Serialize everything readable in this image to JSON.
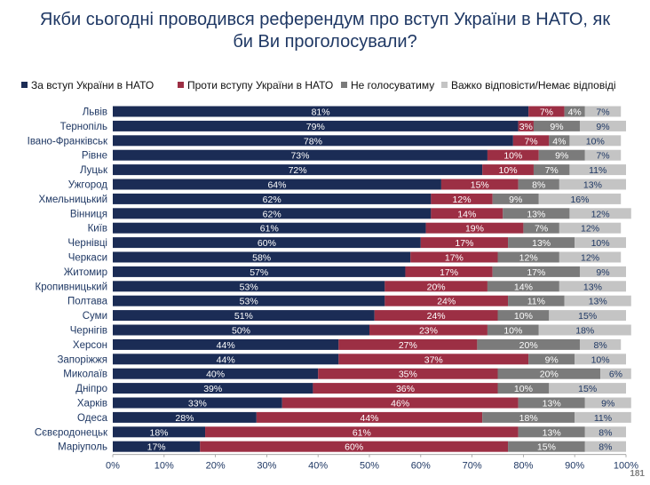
{
  "chart_data": {
    "type": "bar",
    "orientation": "horizontal",
    "stacked": true,
    "title": "Якби сьогодні проводився референдум про вступ України в НАТО, як би Ви проголосували?",
    "title_lines": [
      "Якби сьогодні проводився референдум про вступ України в НАТО, як",
      "би Ви проголосували?"
    ],
    "categories": [
      "Львів",
      "Тернопіль",
      "Івано-Франківськ",
      "Рівне",
      "Луцьк",
      "Ужгород",
      "Хмельницький",
      "Вінниця",
      "Київ",
      "Чернівці",
      "Черкаси",
      "Житомир",
      "Кропивницький",
      "Полтава",
      "Суми",
      "Чернігів",
      "Херсон",
      "Запоріжжя",
      "Миколаїв",
      "Дніпро",
      "Харків",
      "Одеса",
      "Сєвєродонецьк",
      "Маріуполь"
    ],
    "series": [
      {
        "name": "За вступ України в НАТО",
        "color": "#1b2c55",
        "values": [
          81,
          79,
          78,
          73,
          72,
          64,
          62,
          62,
          61,
          60,
          58,
          57,
          53,
          53,
          51,
          50,
          44,
          44,
          40,
          39,
          33,
          28,
          18,
          17
        ]
      },
      {
        "name": "Проти вступу України в НАТО",
        "color": "#9c2f44",
        "values": [
          7,
          3,
          7,
          10,
          10,
          15,
          12,
          14,
          19,
          17,
          17,
          17,
          20,
          24,
          24,
          23,
          27,
          37,
          35,
          36,
          46,
          44,
          61,
          60
        ]
      },
      {
        "name": "Не голосуватиму",
        "color": "#7b7b7b",
        "values": [
          4,
          9,
          4,
          9,
          7,
          8,
          9,
          13,
          7,
          13,
          12,
          17,
          14,
          11,
          10,
          10,
          20,
          9,
          20,
          10,
          13,
          18,
          13,
          15
        ]
      },
      {
        "name": "Важко відповісти/Немає відповіді",
        "color": "#c4c4c4",
        "values": [
          7,
          9,
          10,
          7,
          11,
          13,
          16,
          12,
          12,
          10,
          12,
          9,
          13,
          13,
          15,
          18,
          8,
          10,
          6,
          15,
          9,
          11,
          8,
          8
        ]
      }
    ],
    "xlim": [
      0,
      100
    ],
    "x_ticks": [
      "0%",
      "10%",
      "20%",
      "30%",
      "40%",
      "50%",
      "60%",
      "70%",
      "80%",
      "90%",
      "100%"
    ],
    "legend_position": "top",
    "grid": false
  },
  "page_number": "181"
}
